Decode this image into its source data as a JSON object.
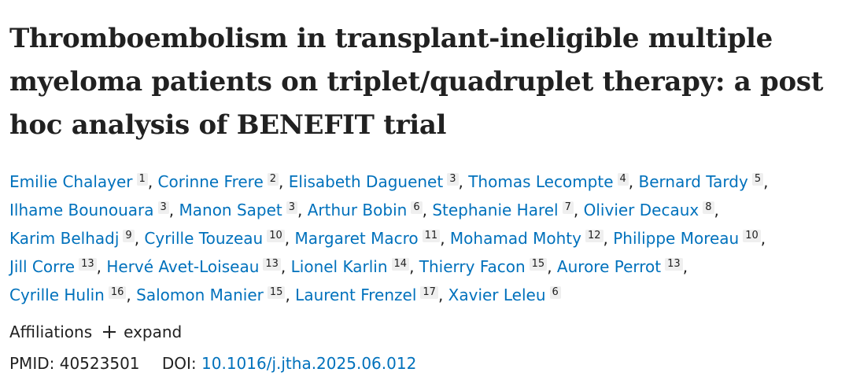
{
  "article": {
    "title": "Thromboembolism in transplant-ineligible multiple myeloma patients on triplet/quadruplet therapy: a post hoc analysis of BENEFIT trial"
  },
  "authors": [
    {
      "name": "Emilie Chalayer",
      "aff": "1"
    },
    {
      "name": "Corinne Frere",
      "aff": "2"
    },
    {
      "name": "Elisabeth Daguenet",
      "aff": "3"
    },
    {
      "name": "Thomas Lecompte",
      "aff": "4"
    },
    {
      "name": "Bernard Tardy",
      "aff": "5"
    },
    {
      "name": "Ilhame Bounouara",
      "aff": "3"
    },
    {
      "name": "Manon Sapet",
      "aff": "3"
    },
    {
      "name": "Arthur Bobin",
      "aff": "6"
    },
    {
      "name": "Stephanie Harel",
      "aff": "7"
    },
    {
      "name": "Olivier Decaux",
      "aff": "8"
    },
    {
      "name": "Karim Belhadj",
      "aff": "9"
    },
    {
      "name": "Cyrille Touzeau",
      "aff": "10"
    },
    {
      "name": "Margaret Macro",
      "aff": "11"
    },
    {
      "name": "Mohamad Mohty",
      "aff": "12"
    },
    {
      "name": "Philippe Moreau",
      "aff": "10"
    },
    {
      "name": "Jill Corre",
      "aff": "13"
    },
    {
      "name": "Hervé Avet-Loiseau",
      "aff": "13"
    },
    {
      "name": "Lionel Karlin",
      "aff": "14"
    },
    {
      "name": "Thierry Facon",
      "aff": "15"
    },
    {
      "name": "Aurore Perrot",
      "aff": "13"
    },
    {
      "name": "Cyrille Hulin",
      "aff": "16"
    },
    {
      "name": "Salomon Manier",
      "aff": "15"
    },
    {
      "name": "Laurent Frenzel",
      "aff": "17"
    },
    {
      "name": "Xavier Leleu",
      "aff": "6"
    }
  ],
  "author_lines": [
    [
      0,
      1,
      2,
      3,
      4
    ],
    [
      5,
      6,
      7,
      8,
      9
    ],
    [
      10,
      11,
      12,
      13,
      14
    ],
    [
      15,
      16,
      17,
      18,
      19
    ],
    [
      20,
      21,
      22,
      23
    ]
  ],
  "affiliations": {
    "label": "Affiliations",
    "toggle_icon": "plus-icon",
    "toggle_label": "expand"
  },
  "identifiers": {
    "pmid_label": "PMID:",
    "pmid_value": "40523501",
    "doi_label": "DOI:",
    "doi_value": "10.1016/j.jtha.2025.06.012"
  },
  "colors": {
    "link": "#0071bc",
    "text": "#212121",
    "aff_badge_bg": "#efefef"
  }
}
